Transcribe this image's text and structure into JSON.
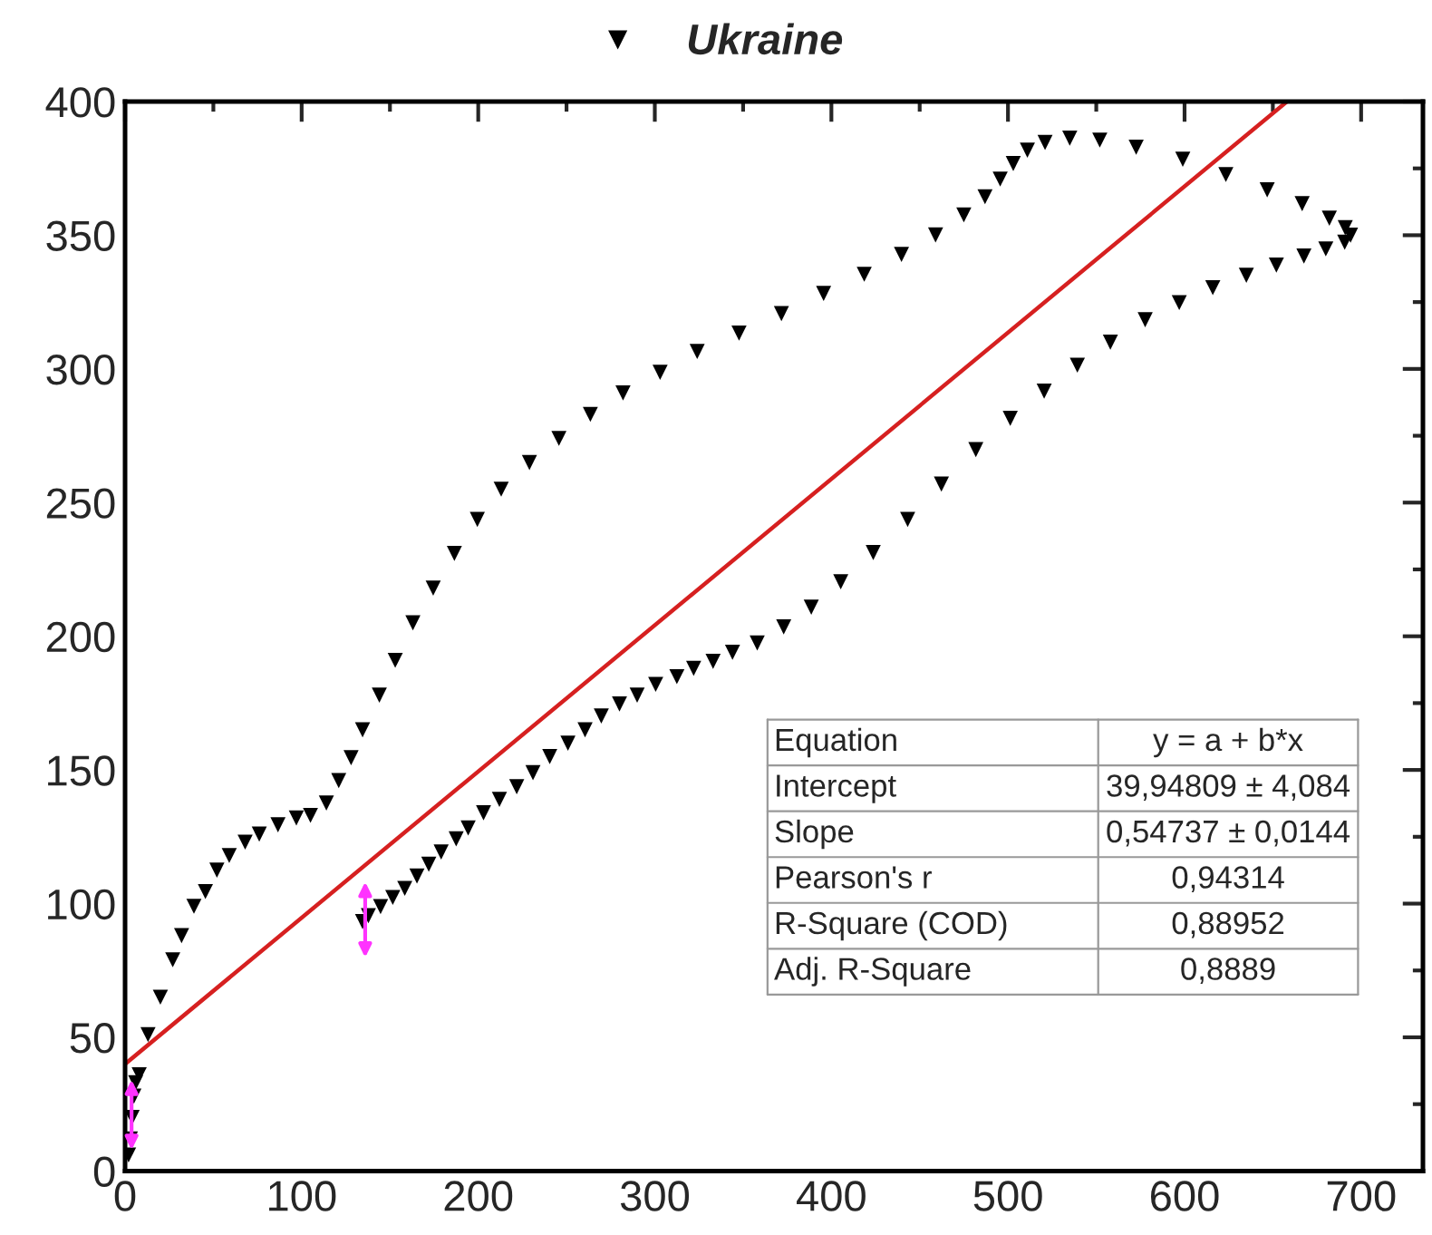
{
  "chart_data": {
    "type": "scatter",
    "xlim": [
      0,
      735
    ],
    "ylim": [
      0,
      400
    ],
    "xticks": [
      0,
      100,
      200,
      300,
      400,
      500,
      600,
      700
    ],
    "yticks": [
      0,
      50,
      100,
      150,
      200,
      250,
      300,
      350,
      400
    ],
    "legend": "top",
    "grid": false,
    "series": [
      {
        "name": "Ukraine",
        "color": "#000000",
        "marker": "triangle",
        "x": [
          2,
          3,
          4,
          5,
          6,
          8,
          13,
          20,
          27,
          32,
          39,
          45.5,
          52,
          59,
          68,
          76,
          86.6,
          97,
          105,
          114,
          121,
          128,
          134.5,
          144,
          153,
          163,
          174.5,
          186.5,
          199.5,
          213,
          229,
          245.7,
          263.5,
          282,
          303,
          324,
          347.7,
          371.7,
          395.6,
          418.6,
          439.7,
          459,
          475,
          487,
          495.6,
          503,
          511,
          521,
          535,
          552,
          572.6,
          599,
          623.4,
          646.8,
          666.6,
          682,
          691,
          694,
          690.7,
          680,
          667.6,
          652,
          635,
          616,
          597,
          577.7,
          558,
          539.3,
          520.5,
          501.3,
          481.8,
          462.3,
          443.2,
          423.7,
          405.3,
          388.6,
          373,
          358,
          344,
          333,
          322,
          312.5,
          300.5,
          290,
          280,
          269.7,
          260.5,
          250.8,
          240.5,
          231,
          221.8,
          212,
          203,
          194.3,
          187.5,
          179,
          172,
          165.3,
          158.4,
          151.6,
          144.7,
          137.8,
          134.5
        ],
        "values": [
          6,
          12,
          20,
          28,
          33,
          36,
          51,
          65,
          79,
          88,
          99,
          104.5,
          112.5,
          118,
          123,
          126,
          129.5,
          132,
          133,
          137.6,
          146,
          154.6,
          165,
          178,
          191,
          205,
          218,
          231,
          243.7,
          255,
          265,
          274,
          283,
          291,
          298.7,
          306.5,
          313.4,
          320.7,
          328.2,
          335.4,
          342.8,
          350.1,
          357.6,
          364.4,
          371,
          376.8,
          381.8,
          384.7,
          386.3,
          385.6,
          382.9,
          378.4,
          372.7,
          367,
          361.8,
          356.4,
          352.8,
          350,
          347.4,
          344.9,
          342.2,
          338.8,
          335,
          330.4,
          324.8,
          318.4,
          310,
          301.4,
          291.7,
          281.5,
          269.8,
          256.9,
          243.7,
          231.3,
          220.4,
          210.9,
          203.5,
          197.5,
          194,
          190.6,
          188,
          184.9,
          182,
          178,
          174.7,
          170.2,
          165,
          160,
          155,
          149,
          143.7,
          139,
          134,
          128.3,
          124.2,
          119.3,
          114.7,
          110.3,
          105.7,
          102.3,
          98.9,
          95.5,
          93.3
        ]
      },
      {
        "color": "#d62020",
        "type": "line",
        "x": [
          0,
          658
        ],
        "values": [
          40,
          400
        ]
      }
    ],
    "annotations": [
      "Equation",
      "y = a + b*x",
      "Intercept",
      "39,94809 ± 4,084",
      "Slope",
      "0,54737 ± 0,0144",
      "Pearson's r",
      "0,94314",
      "R-Square (COD)",
      "0,88952",
      "Adj. R-Square",
      "0,8889"
    ]
  }
}
